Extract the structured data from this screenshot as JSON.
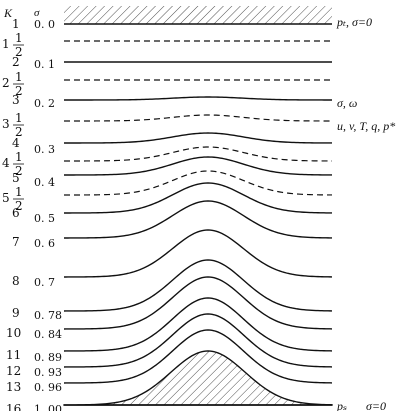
{
  "header": {
    "k_label": "K",
    "sigma_label": "σ"
  },
  "levels": [
    {
      "k": "1",
      "sigma": "0. 0",
      "style": "top"
    },
    {
      "k": "1½",
      "sigma": "",
      "style": "dashed"
    },
    {
      "k": "2",
      "sigma": "0. 1",
      "style": "solid"
    },
    {
      "k": "2½",
      "sigma": "",
      "style": "dashed"
    },
    {
      "k": "3",
      "sigma": "0. 2",
      "style": "solid"
    },
    {
      "k": "3½",
      "sigma": "",
      "style": "dashed"
    },
    {
      "k": "4",
      "sigma": "0. 3",
      "style": "solid"
    },
    {
      "k": "4½",
      "sigma": "",
      "style": "dashed"
    },
    {
      "k": "5",
      "sigma": "0. 4",
      "style": "solid"
    },
    {
      "k": "5½",
      "sigma": "",
      "style": "dashed"
    },
    {
      "k": "6",
      "sigma": "0. 5",
      "style": "solid"
    },
    {
      "k": "7",
      "sigma": "0. 6",
      "style": "solid"
    },
    {
      "k": "8",
      "sigma": "0. 7",
      "style": "solid"
    },
    {
      "k": "9",
      "sigma": "0. 78",
      "style": "solid"
    },
    {
      "k": "10",
      "sigma": "0. 84",
      "style": "solid"
    },
    {
      "k": "11",
      "sigma": "0. 89",
      "style": "solid"
    },
    {
      "k": "12",
      "sigma": "0. 93",
      "style": "solid"
    },
    {
      "k": "13",
      "sigma": "0. 96",
      "style": "solid"
    },
    {
      "k": "16",
      "sigma": "1. 00",
      "style": "surface"
    }
  ],
  "annotations": {
    "top": "pₜ, σ=0",
    "sigma_omega": "σ, ω",
    "variables": "u, v, T, q, p*",
    "surface_p": "pₛ",
    "surface_sigma": "σ=0"
  }
}
